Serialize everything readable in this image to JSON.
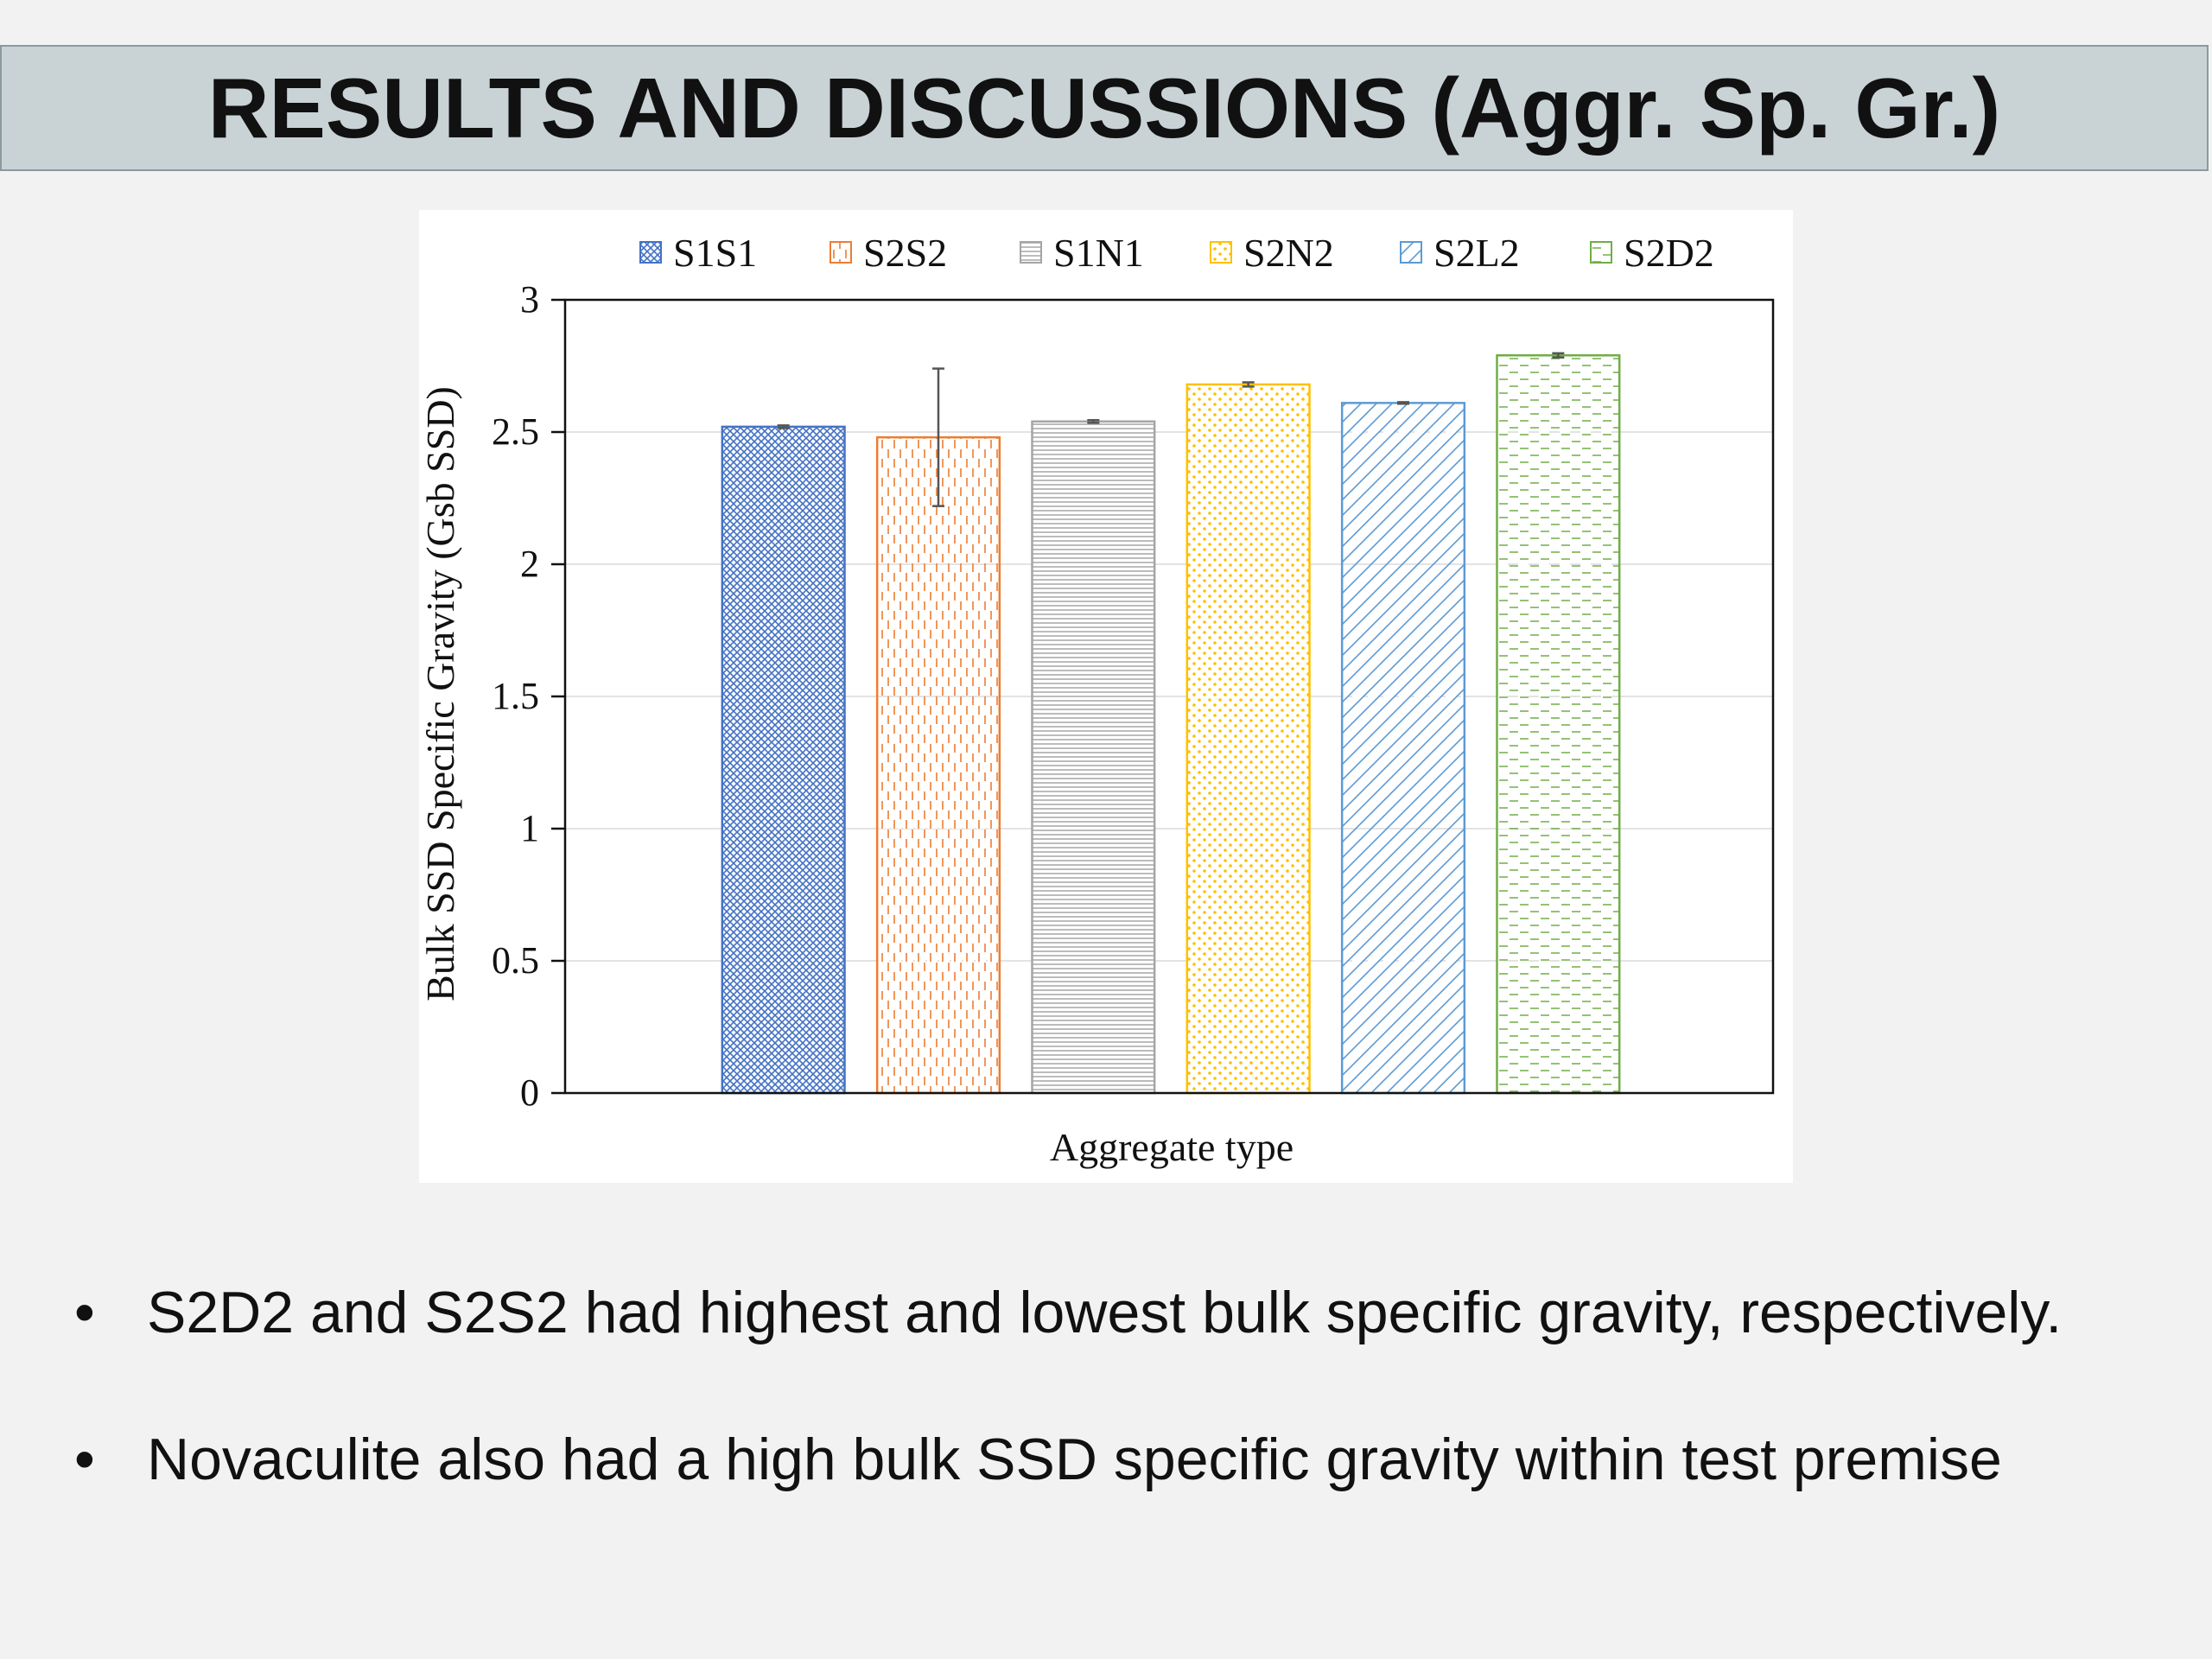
{
  "slide": {
    "title": "RESULTS AND DISCUSSIONS (Aggr. Sp. Gr.)",
    "bullets": [
      "S2D2 and S2S2 had highest and lowest bulk specific gravity, respectively.",
      "Novaculite also had a high bulk SSD specific gravity within test premise"
    ],
    "bullet_glyph": "•"
  },
  "chart_data": {
    "type": "bar",
    "title": "",
    "xlabel": "Aggregate type",
    "ylabel": "Bulk SSD Specific Gravity (Gsb SSD)",
    "ylim": [
      0,
      3
    ],
    "yticks": [
      "0",
      "0.5",
      "1",
      "1.5",
      "2",
      "2.5",
      "3"
    ],
    "grid": true,
    "legend_position": "top",
    "series": [
      {
        "name": "S1S1",
        "value": 2.52,
        "error": 0.005,
        "color": "#4472c4",
        "pattern": "crosshatch"
      },
      {
        "name": "S2S2",
        "value": 2.48,
        "error": 0.26,
        "color": "#ed7d31",
        "pattern": "vertical-dashes"
      },
      {
        "name": "S1N1",
        "value": 2.54,
        "error": 0.005,
        "color": "#a5a5a5",
        "pattern": "horizontal-lines"
      },
      {
        "name": "S2N2",
        "value": 2.68,
        "error": 0.008,
        "color": "#ffc000",
        "pattern": "dots"
      },
      {
        "name": "S2L2",
        "value": 2.61,
        "error": 0.003,
        "color": "#5b9bd5",
        "pattern": "diagonal-stripes"
      },
      {
        "name": "S2D2",
        "value": 2.79,
        "error": 0.008,
        "color": "#70ad47",
        "pattern": "horizontal-dashes"
      }
    ]
  }
}
